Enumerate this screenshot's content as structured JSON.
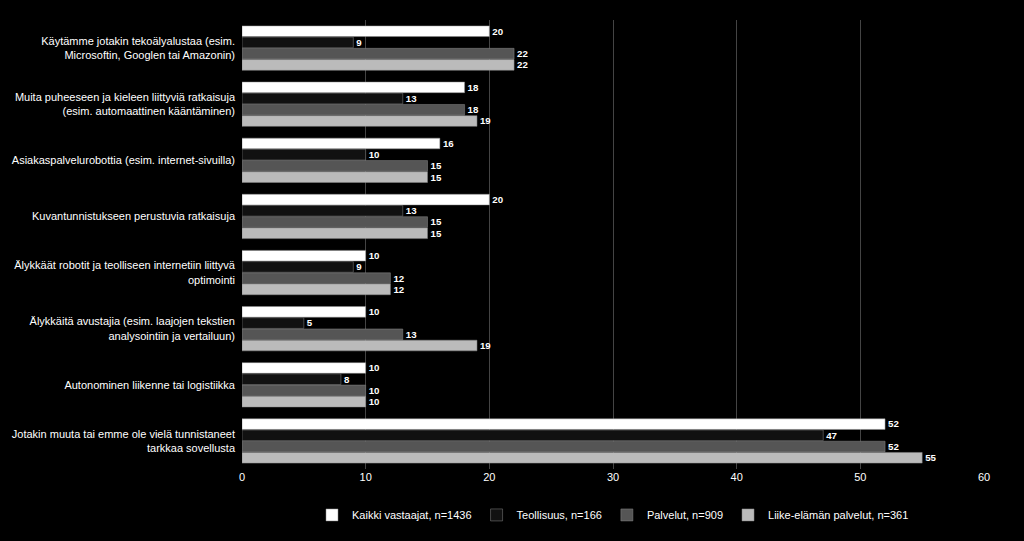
{
  "chart_data": {
    "type": "bar",
    "orientation": "horizontal",
    "categories": [
      "Käytämme jotakin tekoälyalustaa (esim.\nMicrosoftin, Googlen tai Amazonin)",
      "Muita puheeseen ja kieleen liittyviä ratkaisuja\n(esim. automaattinen kääntäminen)",
      "Asiakaspalvelurobottia (esim. internet-sivuilla)",
      "Kuvantunnistukseen perustuvia ratkaisuja",
      "Älykkäät robotit ja teolliseen internetiin liittyvä\noptimointi",
      "Älykkäitä avustajia (esim. laajojen tekstien\nanalysointiin ja vertailuun)",
      "Autonominen liikenne tai logistiikka",
      "Jotakin muuta tai emme ole vielä tunnistaneet\ntarkkaa sovellusta"
    ],
    "series": [
      {
        "name": "Kaikki vastaajat, n=1436",
        "color": "#ffffff",
        "values": [
          20,
          18,
          16,
          20,
          10,
          10,
          10,
          52
        ]
      },
      {
        "name": "Teollisuus, n=166",
        "color": "#111111",
        "values": [
          9,
          13,
          10,
          13,
          9,
          5,
          8,
          47
        ]
      },
      {
        "name": "Palvelut, n=909",
        "color": "#555555",
        "values": [
          22,
          18,
          15,
          15,
          12,
          13,
          10,
          52
        ]
      },
      {
        "name": "Liike-elämän palvelut, n=361",
        "color": "#bbbbbb",
        "values": [
          22,
          19,
          15,
          15,
          12,
          19,
          10,
          55
        ]
      }
    ],
    "xlim": [
      0,
      60
    ],
    "xticks": [
      0,
      10,
      20,
      30,
      40,
      50,
      60
    ],
    "grid": true,
    "legend": "bottom",
    "data_labels": true
  }
}
